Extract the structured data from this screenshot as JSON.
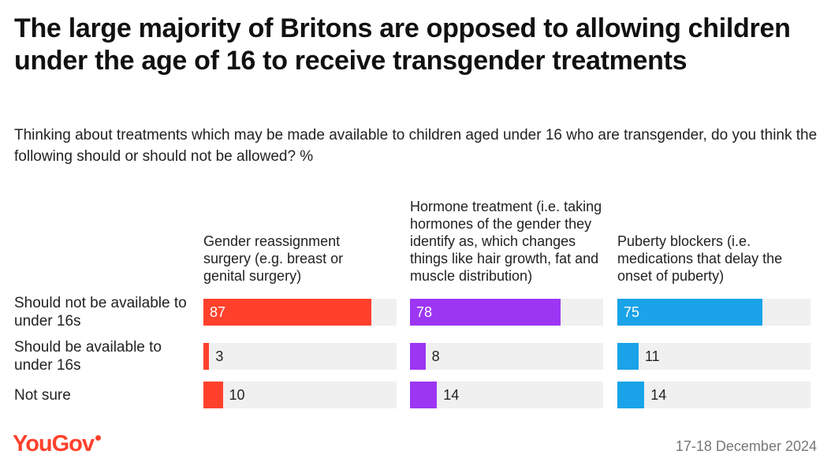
{
  "title": "The large majority of Britons are opposed to allowing children under the age of 16 to receive transgender treatments",
  "subtitle": "Thinking about treatments which may be made available to children aged under 16 who are transgender, do you think the following should or should not be allowed? %",
  "footer": {
    "logo": "YouGov",
    "date": "17-18 December 2024"
  },
  "colors": {
    "gender_reassignment": "#ff412c",
    "hormone_treatment": "#9d36f3",
    "puberty_blockers": "#1aa3e8",
    "track": "#f0f0f0"
  },
  "chart_data": {
    "type": "bar",
    "orientation": "horizontal",
    "unit": "%",
    "xlim": [
      0,
      100
    ],
    "categories": [
      "Should not be available to under 16s",
      "Should be available to under 16s",
      "Not sure"
    ],
    "series": [
      {
        "name": "Gender reassignment surgery (e.g. breast or genital surgery)",
        "values": [
          87,
          3,
          10
        ]
      },
      {
        "name": "Hormone treatment (i.e. taking hormones of the gender they identify as, which changes things like hair growth, fat and muscle distribution)",
        "values": [
          78,
          8,
          14
        ]
      },
      {
        "name": "Puberty blockers (i.e. medications that delay the onset of puberty)",
        "values": [
          75,
          11,
          14
        ]
      }
    ]
  }
}
